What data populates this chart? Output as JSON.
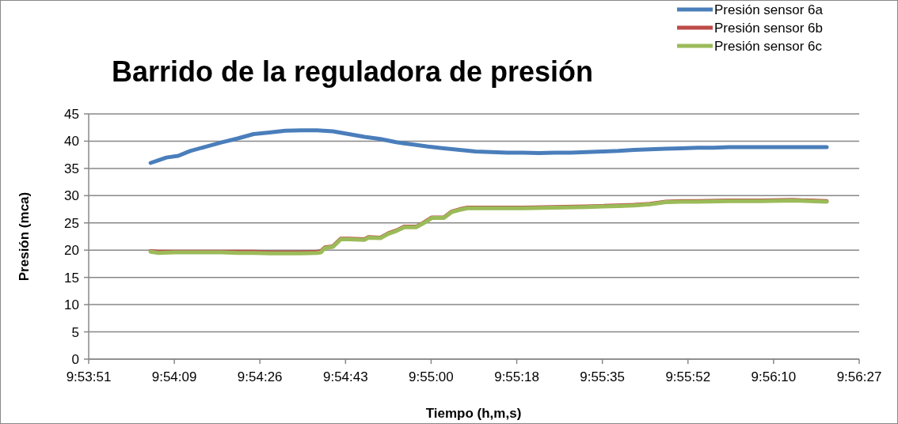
{
  "chart_data": {
    "type": "line",
    "title": "Barrido de la reguladora de presión",
    "xlabel": "Tiempo (h,m,s)",
    "ylabel": "Presión (mca)",
    "xlim": [
      9.8976,
      9.9408
    ],
    "xticks": [
      {
        "value": 9.8976,
        "label": "9:53:51"
      },
      {
        "value": 9.9024,
        "label": "9:54:09"
      },
      {
        "value": 9.9072,
        "label": "9:54:26"
      },
      {
        "value": 9.912,
        "label": "9:54:43"
      },
      {
        "value": 9.9168,
        "label": "9:55:00"
      },
      {
        "value": 9.9216,
        "label": "9:55:18"
      },
      {
        "value": 9.9264,
        "label": "9:55:35"
      },
      {
        "value": 9.9312,
        "label": "9:55:52"
      },
      {
        "value": 9.936,
        "label": "9:56:10"
      },
      {
        "value": 9.9408,
        "label": "9:56:27"
      }
    ],
    "ylim": [
      0,
      45
    ],
    "yticks": [
      0,
      5,
      10,
      15,
      20,
      25,
      30,
      35,
      40,
      45
    ],
    "grid": "y",
    "legend": "top right",
    "marker": "none",
    "line_style": "solid",
    "series": [
      {
        "name": "Presión sensor 6a",
        "color": "#4a7ebb",
        "x": [
          9.90107,
          9.90151,
          9.90196,
          9.90262,
          9.90329,
          9.90418,
          9.90507,
          9.90596,
          9.90684,
          9.90773,
          9.90862,
          9.90951,
          9.9104,
          9.91129,
          9.91218,
          9.91307,
          9.91396,
          9.91484,
          9.91573,
          9.91662,
          9.91751,
          9.9184,
          9.91929,
          9.92018,
          9.92107,
          9.92196,
          9.92284,
          9.92373,
          9.92462,
          9.92551,
          9.9264,
          9.92729,
          9.92818,
          9.92907,
          9.92996,
          9.93084,
          9.93173,
          9.93262,
          9.93351,
          9.9344,
          9.93529,
          9.93618,
          9.93707,
          9.93796,
          9.93898
        ],
        "values": [
          36,
          36.5,
          37,
          37.3,
          38.2,
          39,
          39.8,
          40.5,
          41.3,
          41.6,
          41.9,
          42,
          42,
          41.8,
          41.3,
          40.8,
          40.4,
          39.8,
          39.4,
          39,
          38.7,
          38.4,
          38.1,
          38,
          37.9,
          37.9,
          37.8,
          37.9,
          37.9,
          38,
          38.1,
          38.2,
          38.4,
          38.5,
          38.6,
          38.7,
          38.8,
          38.8,
          38.9,
          38.9,
          38.9,
          38.9,
          38.9,
          38.9,
          38.9
        ]
      },
      {
        "name": "Presión sensor 6b",
        "color": "#be4b48",
        "x": [
          9.90107,
          9.90151,
          9.9024,
          9.90329,
          9.90418,
          9.90507,
          9.90596,
          9.90684,
          9.90773,
          9.90862,
          9.90951,
          9.9104,
          9.91062,
          9.91084,
          9.91129,
          9.91173,
          9.91218,
          9.91307,
          9.91329,
          9.91396,
          9.9144,
          9.91484,
          9.91529,
          9.91596,
          9.9164,
          9.91684,
          9.91751,
          9.91796,
          9.9184,
          9.91884,
          9.92018,
          9.92196,
          9.92373,
          9.92551,
          9.9264,
          9.92729,
          9.92818,
          9.92907,
          9.92996,
          9.93084,
          9.93173,
          9.93351,
          9.93529,
          9.93707,
          9.93898
        ],
        "values": [
          19.8,
          19.7,
          19.7,
          19.7,
          19.7,
          19.7,
          19.7,
          19.7,
          19.6,
          19.6,
          19.6,
          19.7,
          19.8,
          20.5,
          20.7,
          22.1,
          22.1,
          22,
          22.4,
          22.3,
          23.1,
          23.6,
          24.3,
          24.3,
          25.1,
          26,
          26,
          27.1,
          27.5,
          27.8,
          27.8,
          27.8,
          27.9,
          28,
          28.1,
          28.2,
          28.3,
          28.5,
          28.9,
          29,
          29,
          29.1,
          29.1,
          29.2,
          29
        ]
      },
      {
        "name": "Presión sensor 6c",
        "color": "#9bbb59",
        "x": [
          9.90107,
          9.90151,
          9.9024,
          9.90329,
          9.90418,
          9.90507,
          9.90596,
          9.90684,
          9.90773,
          9.90862,
          9.90951,
          9.9104,
          9.91062,
          9.91084,
          9.91129,
          9.91173,
          9.91218,
          9.91307,
          9.91329,
          9.91396,
          9.9144,
          9.91484,
          9.91529,
          9.91596,
          9.9164,
          9.91684,
          9.91751,
          9.91796,
          9.9184,
          9.91884,
          9.92018,
          9.92196,
          9.92373,
          9.92551,
          9.9264,
          9.92729,
          9.92818,
          9.92907,
          9.92996,
          9.93084,
          9.93173,
          9.93351,
          9.93529,
          9.93707,
          9.93898
        ],
        "values": [
          19.7,
          19.5,
          19.6,
          19.6,
          19.6,
          19.6,
          19.5,
          19.5,
          19.4,
          19.4,
          19.4,
          19.5,
          19.6,
          20.4,
          20.6,
          22,
          22,
          21.9,
          22.3,
          22.2,
          23,
          23.5,
          24.2,
          24.2,
          25,
          25.9,
          25.9,
          27,
          27.4,
          27.7,
          27.7,
          27.7,
          27.8,
          27.9,
          28,
          28.1,
          28.2,
          28.4,
          28.8,
          28.9,
          28.9,
          29,
          29,
          29.1,
          28.9
        ]
      }
    ]
  }
}
